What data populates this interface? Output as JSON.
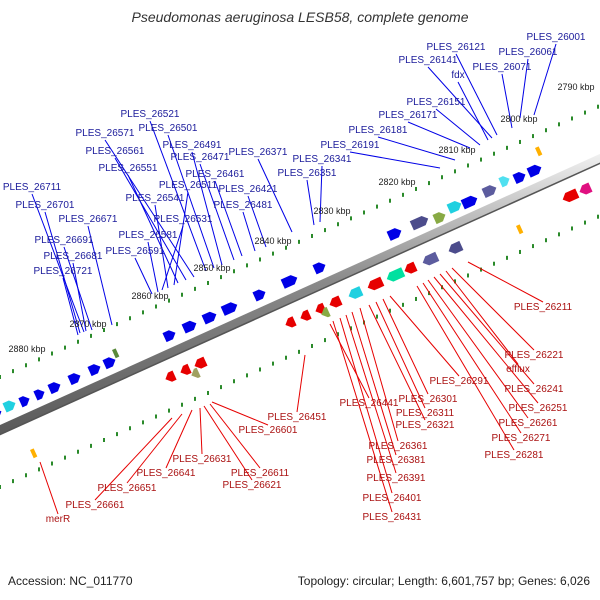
{
  "title": "Pseudomonas aeruginosa LESB58, complete genome",
  "footer": {
    "accession": "Accession: NC_011770",
    "summary": "Topology: circular; Length: 6,601,757 bp; Genes: 6,026"
  },
  "colors": {
    "forward": "#0000e6",
    "reverse": "#e60000",
    "backbone": "#777777",
    "tick": "#2a8a2a"
  },
  "scale_labels": [
    "2790 kbp",
    "2800 kbp",
    "2810 kbp",
    "2820 kbp",
    "2830 kbp",
    "2840 kbp",
    "2850 kbp",
    "2860 kbp",
    "2870 kbp",
    "2880 kbp"
  ],
  "forward_genes": [
    "PLES_26001",
    "PLES_26061",
    "PLES_26121",
    "PLES_26141",
    "fdx",
    "PLES_26071",
    "PLES_26151",
    "PLES_26171",
    "PLES_26181",
    "PLES_26191",
    "PLES_26341",
    "PLES_26351",
    "PLES_26371",
    "PLES_26421",
    "PLES_26481",
    "PLES_26461",
    "PLES_26471",
    "PLES_26491",
    "PLES_26501",
    "PLES_26521",
    "PLES_26571",
    "PLES_26561",
    "PLES_26551",
    "PLES_26511",
    "PLES_26541",
    "PLES_26531",
    "PLES_26581",
    "PLES_26591",
    "PLES_26671",
    "PLES_26711",
    "PLES_26701",
    "PLES_26691",
    "PLES_26681",
    "PLES_26721"
  ],
  "reverse_genes": [
    "PLES_26211",
    "PLES_26221",
    "efflux",
    "PLES_26241",
    "PLES_26251",
    "PLES_26261",
    "PLES_26271",
    "PLES_26281",
    "PLES_26291",
    "PLES_26301",
    "PLES_26311",
    "PLES_26321",
    "PLES_26361",
    "PLES_26381",
    "PLES_26391",
    "PLES_26401",
    "PLES_26431",
    "PLES_26441",
    "PLES_26451",
    "PLES_26601",
    "PLES_26611",
    "PLES_26621",
    "PLES_26631",
    "PLES_26641",
    "PLES_26651",
    "PLES_26661",
    "merR"
  ]
}
